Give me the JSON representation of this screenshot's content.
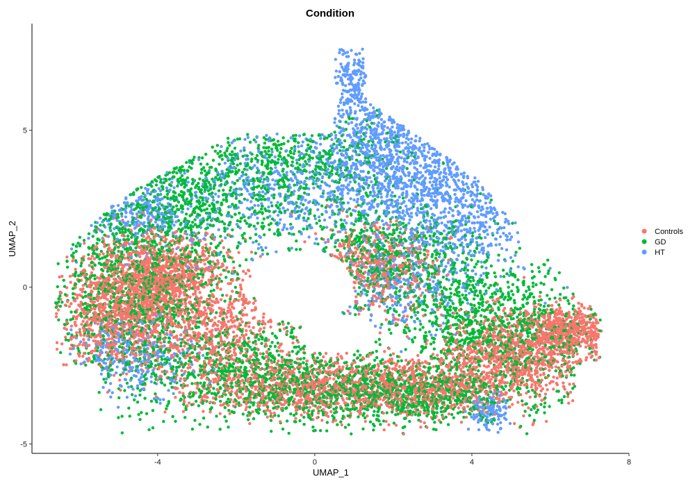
{
  "chart_data": {
    "type": "scatter",
    "title": "Condition",
    "xlabel": "UMAP_1",
    "ylabel": "UMAP_2",
    "xlim": [
      -7.2,
      8.0
    ],
    "ylim": [
      -5.3,
      8.4
    ],
    "x_ticks": [
      -4,
      0,
      4,
      8
    ],
    "x_tick_labels": [
      "-4",
      "0",
      "4",
      "8"
    ],
    "y_ticks": [
      -5,
      0,
      5
    ],
    "y_tick_labels": [
      "-5",
      "0",
      "5"
    ],
    "grid": false,
    "legend_position": "right",
    "series": [
      {
        "name": "Controls",
        "color": "#F8766D",
        "regions": [
          {
            "x": -4.0,
            "y": 0.3,
            "sx": 0.9,
            "sy": 0.7,
            "n": 1100
          },
          {
            "x": -5.0,
            "y": -1.0,
            "sx": 0.8,
            "sy": 0.8,
            "n": 800
          },
          {
            "x": -2.5,
            "y": -1.5,
            "sx": 1.0,
            "sy": 0.9,
            "n": 600
          },
          {
            "x": -0.5,
            "y": -3.2,
            "sx": 1.3,
            "sy": 0.45,
            "n": 700
          },
          {
            "x": 2.5,
            "y": -3.2,
            "sx": 1.2,
            "sy": 0.5,
            "n": 700
          },
          {
            "x": 5.0,
            "y": -2.2,
            "sx": 0.9,
            "sy": 0.7,
            "n": 900
          },
          {
            "x": 6.5,
            "y": -1.4,
            "sx": 0.5,
            "sy": 0.4,
            "n": 500
          },
          {
            "x": 1.5,
            "y": 0.6,
            "sx": 0.8,
            "sy": 0.7,
            "n": 450
          }
        ]
      },
      {
        "name": "GD",
        "color": "#00BA38",
        "regions": [
          {
            "x": -4.5,
            "y": 0.0,
            "sx": 1.2,
            "sy": 1.4,
            "n": 1200
          },
          {
            "x": -3.0,
            "y": 3.0,
            "sx": 1.3,
            "sy": 1.0,
            "n": 700
          },
          {
            "x": -1.5,
            "y": -2.8,
            "sx": 1.6,
            "sy": 0.8,
            "n": 900
          },
          {
            "x": 2.0,
            "y": -3.4,
            "sx": 1.5,
            "sy": 0.5,
            "n": 900
          },
          {
            "x": 5.0,
            "y": -1.5,
            "sx": 1.2,
            "sy": 1.0,
            "n": 900
          },
          {
            "x": 1.5,
            "y": 1.0,
            "sx": 1.0,
            "sy": 0.9,
            "n": 500
          },
          {
            "x": 0.0,
            "y": 4.0,
            "sx": 1.2,
            "sy": 0.8,
            "n": 400
          },
          {
            "x": 3.5,
            "y": 0.0,
            "sx": 0.8,
            "sy": 1.2,
            "n": 350
          }
        ]
      },
      {
        "name": "HT",
        "color": "#619CFF",
        "regions": [
          {
            "x": 1.8,
            "y": 4.5,
            "sx": 1.0,
            "sy": 1.3,
            "n": 900
          },
          {
            "x": 3.6,
            "y": 2.8,
            "sx": 1.0,
            "sy": 1.3,
            "n": 700
          },
          {
            "x": 1.0,
            "y": 6.8,
            "sx": 0.25,
            "sy": 0.6,
            "n": 140
          },
          {
            "x": -1.0,
            "y": 3.0,
            "sx": 1.5,
            "sy": 1.0,
            "n": 500
          },
          {
            "x": -4.5,
            "y": 2.4,
            "sx": 0.7,
            "sy": 0.6,
            "n": 260
          },
          {
            "x": 4.4,
            "y": -4.0,
            "sx": 0.25,
            "sy": 0.3,
            "n": 120
          },
          {
            "x": -4.5,
            "y": -2.2,
            "sx": 0.8,
            "sy": 0.6,
            "n": 300
          },
          {
            "x": 2.0,
            "y": 0.0,
            "sx": 1.0,
            "sy": 0.7,
            "n": 250
          }
        ]
      }
    ]
  }
}
